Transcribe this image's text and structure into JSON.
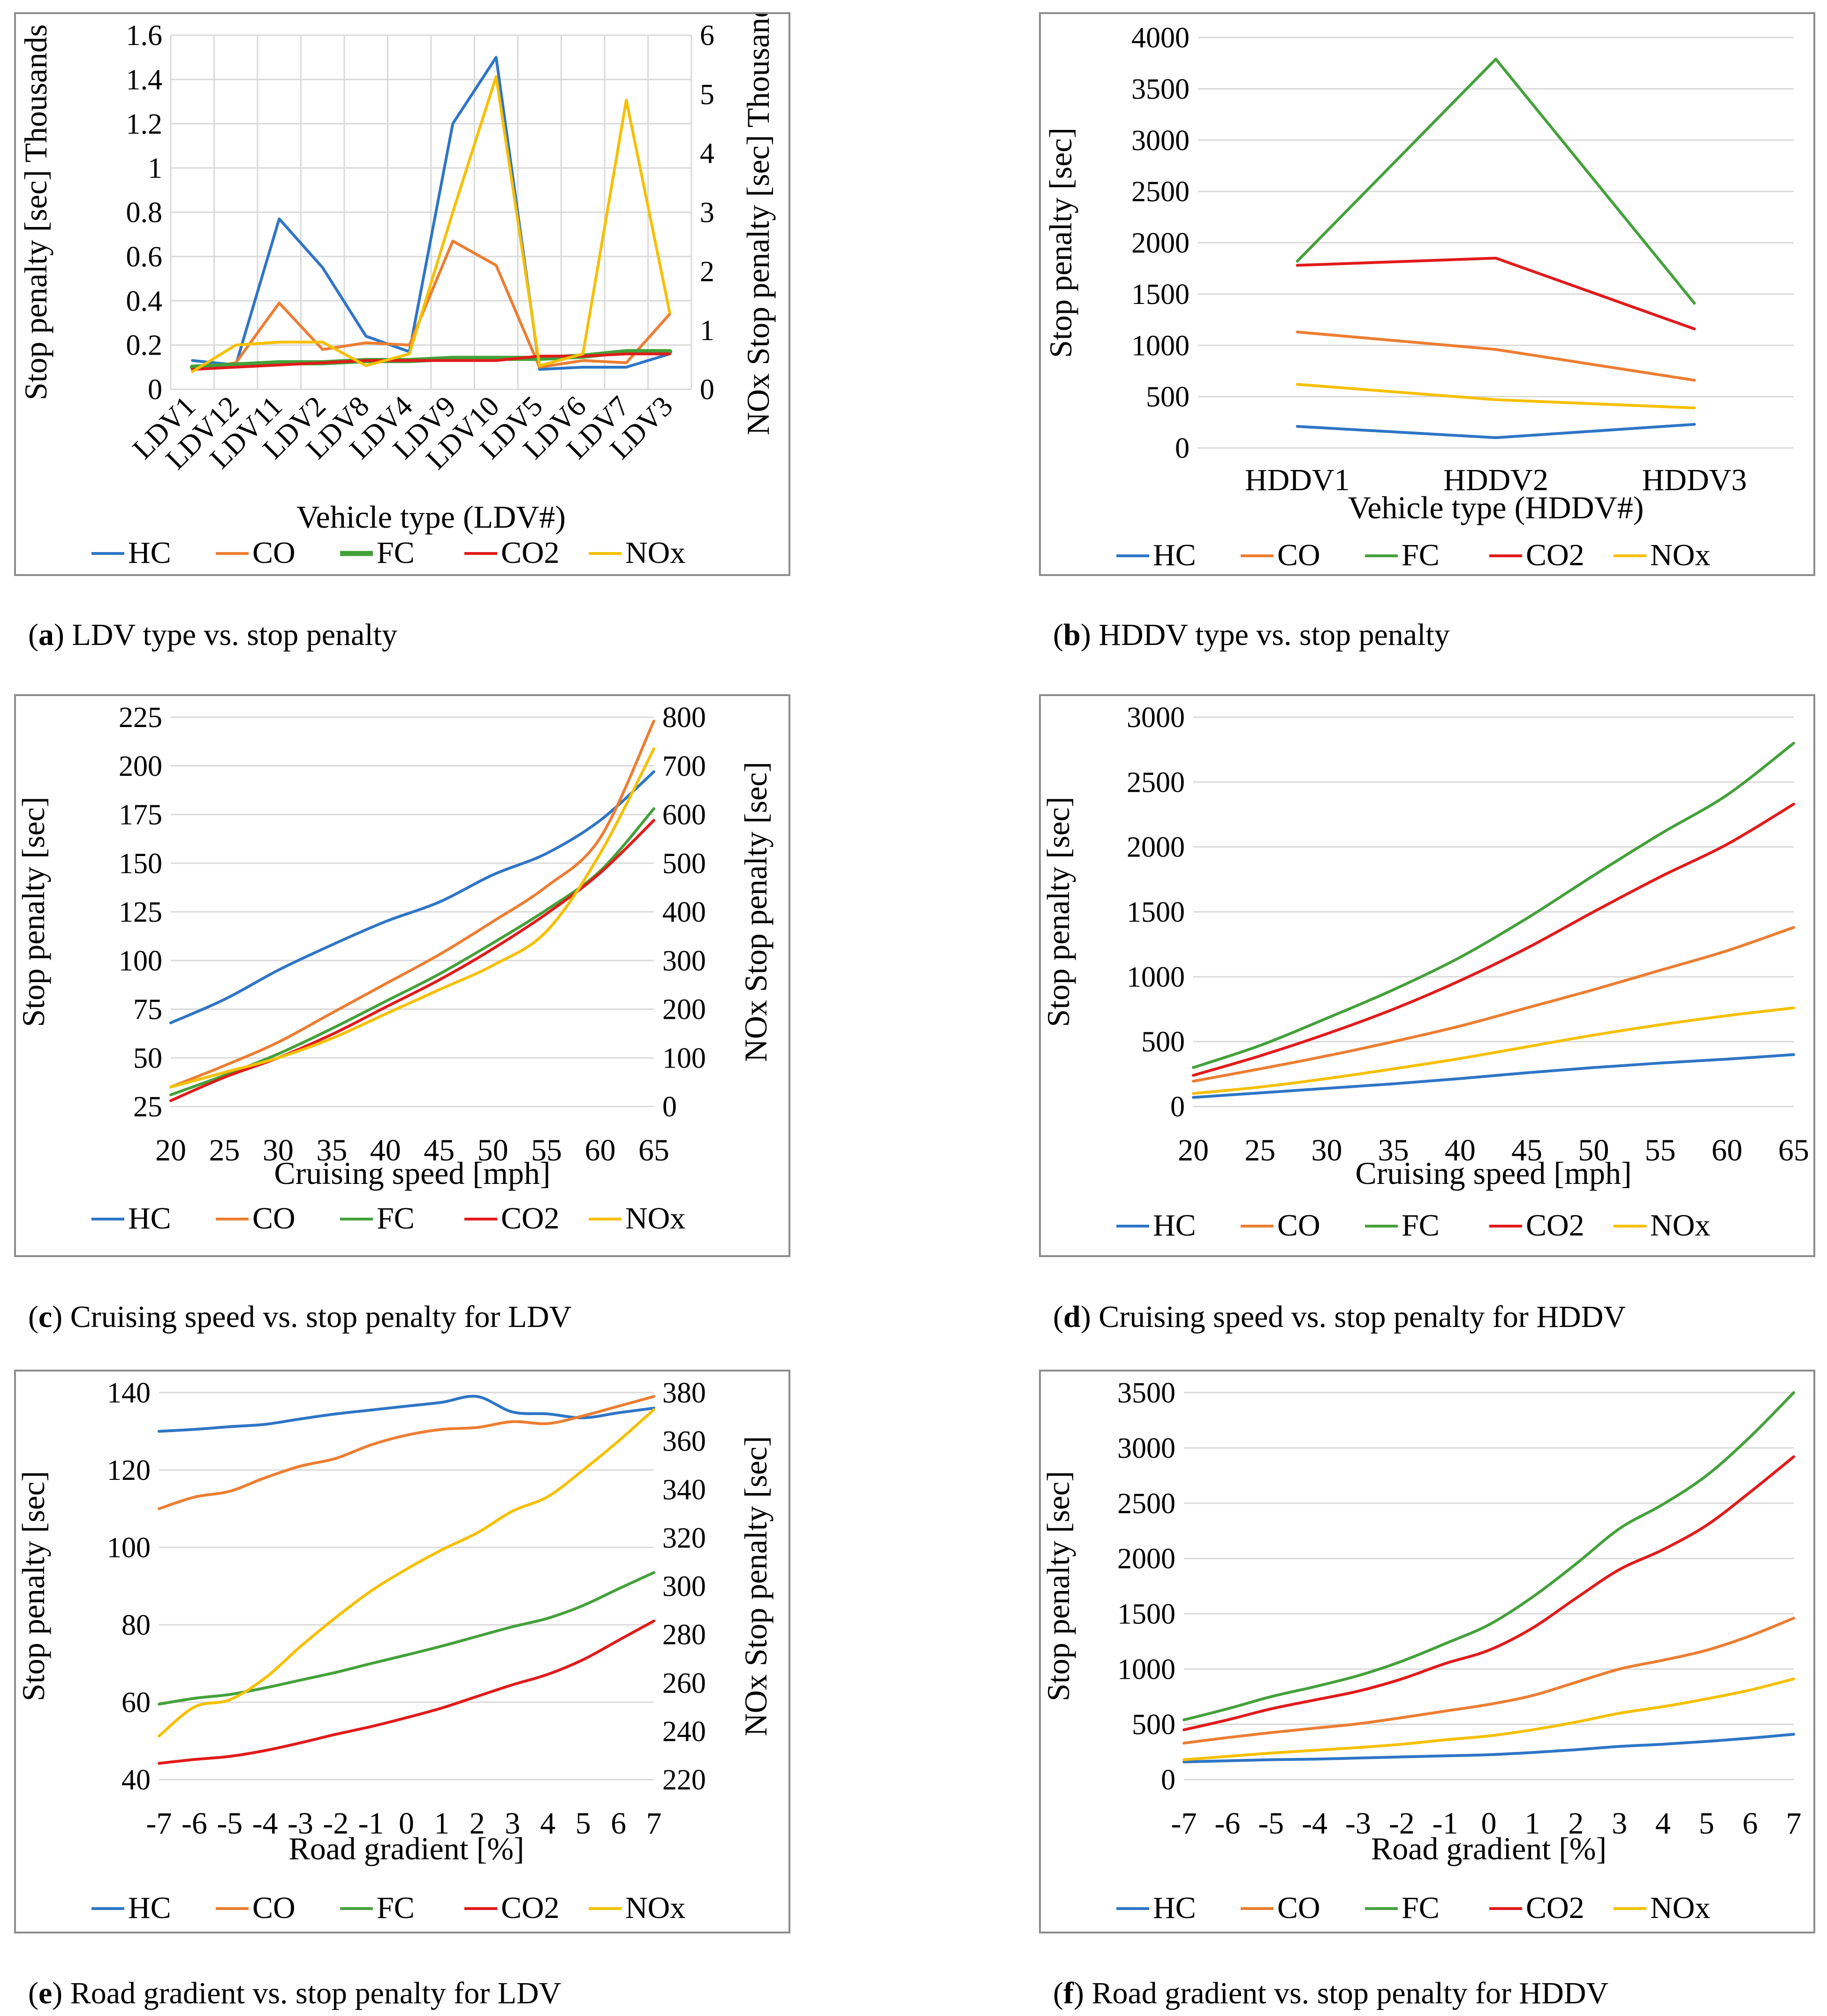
{
  "colors": {
    "HC": "#2e75c6",
    "CO": "#ed7d31",
    "FC": "#43a13a",
    "CO2": "#e21a1a",
    "NOx": "#f5c000",
    "grid": "#d9d9d9",
    "frame": "#8c8c8c"
  },
  "captions": [
    {
      "letter": "a",
      "text": "LDV type vs. stop penalty"
    },
    {
      "letter": "b",
      "text": "HDDV type vs. stop penalty"
    },
    {
      "letter": "c",
      "text": "Cruising speed vs. stop penalty for LDV"
    },
    {
      "letter": "d",
      "text": "Cruising speed vs. stop penalty for HDDV"
    },
    {
      "letter": "e",
      "text": "Road gradient vs. stop penalty for LDV"
    },
    {
      "letter": "f",
      "text": "Road gradient vs. stop penalty for HDDV"
    }
  ],
  "chart_data": [
    {
      "id": "a",
      "type": "line",
      "xlabel": "Vehicle type (LDV#)",
      "ylabel": "Stop penalty [sec] Thousands",
      "y2label": "NOx Stop penalty [sec] Thousands",
      "categories": [
        "LDV1",
        "LDV12",
        "LDV11",
        "LDV2",
        "LDV8",
        "LDV4",
        "LDV9",
        "LDV10",
        "LDV5",
        "LDV6",
        "LDV7",
        "LDV3"
      ],
      "ylim": [
        0,
        1.6
      ],
      "yticks": [
        0,
        0.2,
        0.4,
        0.6,
        0.8,
        1,
        1.2,
        1.4,
        1.6
      ],
      "y2lim": [
        0,
        6
      ],
      "y2ticks": [
        0,
        1,
        2,
        3,
        4,
        5,
        6
      ],
      "legend": [
        "HC",
        "CO",
        "FC",
        "CO2",
        "NOx"
      ],
      "series": [
        {
          "name": "HC",
          "values": [
            0.13,
            0.11,
            0.77,
            0.55,
            0.24,
            0.17,
            1.2,
            1.5,
            0.09,
            0.1,
            0.1,
            0.16
          ]
        },
        {
          "name": "CO",
          "values": [
            0.09,
            0.12,
            0.39,
            0.18,
            0.21,
            0.2,
            0.67,
            0.56,
            0.1,
            0.13,
            0.12,
            0.34
          ]
        },
        {
          "name": "FC",
          "values": [
            0.1,
            0.11,
            0.12,
            0.12,
            0.13,
            0.13,
            0.14,
            0.14,
            0.14,
            0.15,
            0.17,
            0.17
          ]
        },
        {
          "name": "CO2",
          "values": [
            0.09,
            0.1,
            0.11,
            0.12,
            0.13,
            0.13,
            0.13,
            0.13,
            0.15,
            0.15,
            0.16,
            0.16
          ]
        },
        {
          "name": "NOx",
          "axis": "right",
          "values": [
            0.3,
            0.75,
            0.8,
            0.8,
            0.4,
            0.6,
            3.0,
            5.3,
            0.4,
            0.6,
            4.9,
            1.3
          ]
        }
      ]
    },
    {
      "id": "b",
      "type": "line",
      "xlabel": "Vehicle type (HDDV#)",
      "ylabel": "Stop penalty [sec]",
      "categories": [
        "HDDV1",
        "HDDV2",
        "HDDV3"
      ],
      "ylim": [
        0,
        4000
      ],
      "yticks": [
        0,
        500,
        1000,
        1500,
        2000,
        2500,
        3000,
        3500,
        4000
      ],
      "legend": [
        "HC",
        "CO",
        "FC",
        "CO2",
        "NOx"
      ],
      "series": [
        {
          "name": "HC",
          "values": [
            210,
            100,
            230
          ]
        },
        {
          "name": "CO",
          "values": [
            1130,
            960,
            660
          ]
        },
        {
          "name": "FC",
          "values": [
            1820,
            3790,
            1410
          ]
        },
        {
          "name": "CO2",
          "values": [
            1780,
            1850,
            1160
          ]
        },
        {
          "name": "NOx",
          "values": [
            620,
            470,
            390
          ]
        }
      ]
    },
    {
      "id": "c",
      "type": "line",
      "xlabel": "Cruising speed [mph]",
      "ylabel": "Stop penalty [sec]",
      "y2label": "NOx Stop penalty [sec]",
      "x": [
        20,
        25,
        30,
        35,
        40,
        45,
        50,
        55,
        60,
        65
      ],
      "ylim": [
        25,
        225
      ],
      "yticks": [
        25,
        50,
        75,
        100,
        125,
        150,
        175,
        200,
        225
      ],
      "y2lim": [
        0,
        800
      ],
      "y2ticks": [
        0,
        100,
        200,
        300,
        400,
        500,
        600,
        700,
        800
      ],
      "legend": [
        "HC",
        "CO",
        "FC",
        "CO2",
        "NOx"
      ],
      "series": [
        {
          "name": "HC",
          "values": [
            68,
            80,
            95,
            108,
            120,
            130,
            144,
            155,
            172,
            197
          ]
        },
        {
          "name": "CO",
          "values": [
            35,
            46,
            58,
            73,
            88,
            103,
            120,
            138,
            163,
            223
          ]
        },
        {
          "name": "FC",
          "values": [
            31,
            41,
            52,
            65,
            79,
            93,
            109,
            126,
            146,
            178
          ]
        },
        {
          "name": "CO2",
          "values": [
            28,
            40,
            50,
            62,
            76,
            90,
            106,
            124,
            145,
            172
          ]
        },
        {
          "name": "NOx",
          "axis": "right",
          "values": [
            40,
            70,
            100,
            140,
            190,
            240,
            290,
            360,
            520,
            735
          ]
        }
      ]
    },
    {
      "id": "d",
      "type": "line",
      "xlabel": "Cruising speed [mph]",
      "ylabel": "Stop penalty [sec]",
      "x": [
        20,
        25,
        30,
        35,
        40,
        45,
        50,
        55,
        60,
        65
      ],
      "ylim": [
        0,
        3000
      ],
      "yticks": [
        0,
        500,
        1000,
        1500,
        2000,
        2500,
        3000
      ],
      "legend": [
        "HC",
        "CO",
        "FC",
        "CO2",
        "NOx"
      ],
      "series": [
        {
          "name": "HC",
          "values": [
            70,
            105,
            140,
            175,
            215,
            260,
            300,
            335,
            365,
            400
          ]
        },
        {
          "name": "CO",
          "values": [
            195,
            290,
            390,
            500,
            620,
            760,
            900,
            1050,
            1200,
            1380
          ]
        },
        {
          "name": "FC",
          "values": [
            300,
            470,
            680,
            900,
            1150,
            1450,
            1780,
            2100,
            2400,
            2800
          ]
        },
        {
          "name": "CO2",
          "values": [
            240,
            390,
            560,
            750,
            970,
            1220,
            1500,
            1770,
            2020,
            2330
          ]
        },
        {
          "name": "NOx",
          "values": [
            100,
            150,
            215,
            290,
            370,
            460,
            550,
            630,
            700,
            760
          ]
        }
      ]
    },
    {
      "id": "e",
      "type": "line",
      "xlabel": "Road gradient [%]",
      "ylabel": "Stop penalty [sec]",
      "y2label": "NOx Stop penalty [sec]",
      "x": [
        -7,
        -6,
        -5,
        -4,
        -3,
        -2,
        -1,
        0,
        1,
        2,
        3,
        4,
        5,
        6,
        7
      ],
      "ylim": [
        40,
        140
      ],
      "yticks": [
        40,
        60,
        80,
        100,
        120,
        140
      ],
      "y2lim": [
        220,
        380
      ],
      "y2ticks": [
        220,
        240,
        260,
        280,
        300,
        320,
        340,
        360,
        380
      ],
      "legend": [
        "HC",
        "CO",
        "FC",
        "CO2",
        "NOx"
      ],
      "series": [
        {
          "name": "HC",
          "values": [
            130,
            130.5,
            131.2,
            131.8,
            133.2,
            134.5,
            135.5,
            136.5,
            137.5,
            139,
            135,
            134.5,
            133.5,
            134.8,
            136
          ]
        },
        {
          "name": "CO",
          "values": [
            110,
            113,
            114.5,
            118,
            121,
            123,
            126.5,
            129,
            130.5,
            131,
            132.5,
            132,
            134,
            136.5,
            139
          ]
        },
        {
          "name": "FC",
          "values": [
            59.5,
            61,
            62,
            63.7,
            65.7,
            67.7,
            70,
            72.2,
            74.5,
            77,
            79.5,
            81.7,
            85,
            89.3,
            93.5
          ]
        },
        {
          "name": "CO2",
          "values": [
            44.2,
            45.2,
            46,
            47.5,
            49.5,
            51.7,
            53.7,
            56,
            58.5,
            61.5,
            64.5,
            67.2,
            71,
            76,
            81
          ]
        },
        {
          "name": "NOx",
          "axis": "right",
          "values": [
            238,
            250,
            253,
            262,
            275,
            287,
            298,
            307,
            315,
            322,
            331,
            337,
            348,
            360,
            373
          ]
        }
      ]
    },
    {
      "id": "f",
      "type": "line",
      "xlabel": "Road gradient [%]",
      "ylabel": "Stop penalty [sec]",
      "x": [
        -7,
        -6,
        -5,
        -4,
        -3,
        -2,
        -1,
        0,
        1,
        2,
        3,
        4,
        5,
        6,
        7
      ],
      "ylim": [
        0,
        3500
      ],
      "yticks": [
        0,
        500,
        1000,
        1500,
        2000,
        2500,
        3000,
        3500
      ],
      "legend": [
        "HC",
        "CO",
        "FC",
        "CO2",
        "NOx"
      ],
      "series": [
        {
          "name": "HC",
          "values": [
            160,
            170,
            180,
            185,
            195,
            205,
            215,
            225,
            245,
            270,
            300,
            320,
            345,
            375,
            410
          ]
        },
        {
          "name": "CO",
          "values": [
            330,
            380,
            425,
            465,
            505,
            560,
            620,
            680,
            760,
            880,
            1000,
            1080,
            1170,
            1300,
            1460
          ]
        },
        {
          "name": "FC",
          "values": [
            540,
            640,
            750,
            840,
            940,
            1070,
            1230,
            1400,
            1650,
            1950,
            2270,
            2490,
            2750,
            3100,
            3500
          ]
        },
        {
          "name": "CO2",
          "values": [
            450,
            540,
            640,
            720,
            800,
            910,
            1050,
            1170,
            1370,
            1640,
            1900,
            2080,
            2300,
            2600,
            2920
          ]
        },
        {
          "name": "NOx",
          "values": [
            180,
            210,
            240,
            265,
            290,
            320,
            360,
            395,
            450,
            520,
            600,
            660,
            730,
            810,
            910
          ]
        }
      ]
    }
  ]
}
